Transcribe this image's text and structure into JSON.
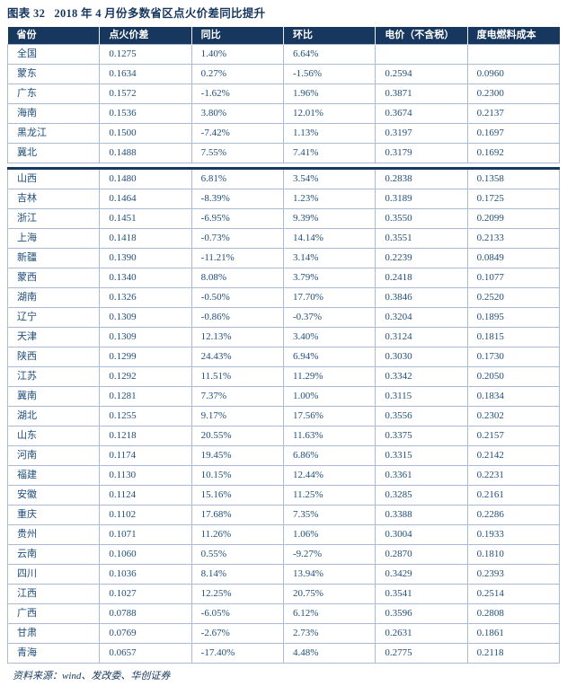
{
  "title": "图表 32   2018 年 4 月份多数省区点火价差同比提升",
  "source": "资料来源：wind、发改委、华创证券",
  "colors": {
    "header_bg": "#17375E",
    "title_text": "#17375E",
    "cell_text": "#1F4E79",
    "grid_border": "#A9BBD6",
    "page_break_rule": "#17375E"
  },
  "table": {
    "columns": [
      "省份",
      "点火价差",
      "同比",
      "环比",
      "电价（不含税）",
      "度电燃料成本"
    ],
    "segments": [
      {
        "rows": [
          [
            "全国",
            "0.1275",
            "1.40%",
            "6.64%",
            "",
            ""
          ],
          [
            "蒙东",
            "0.1634",
            "0.27%",
            "-1.56%",
            "0.2594",
            "0.0960"
          ],
          [
            "广东",
            "0.1572",
            "-1.62%",
            "1.96%",
            "0.3871",
            "0.2300"
          ],
          [
            "海南",
            "0.1536",
            "3.80%",
            "12.01%",
            "0.3674",
            "0.2137"
          ],
          [
            "黑龙江",
            "0.1500",
            "-7.42%",
            "1.13%",
            "0.3197",
            "0.1697"
          ],
          [
            "冀北",
            "0.1488",
            "7.55%",
            "7.41%",
            "0.3179",
            "0.1692"
          ]
        ]
      },
      {
        "rows": [
          [
            "山西",
            "0.1480",
            "6.81%",
            "3.54%",
            "0.2838",
            "0.1358"
          ],
          [
            "吉林",
            "0.1464",
            "-8.39%",
            "1.23%",
            "0.3189",
            "0.1725"
          ],
          [
            "浙江",
            "0.1451",
            "-6.95%",
            "9.39%",
            "0.3550",
            "0.2099"
          ],
          [
            "上海",
            "0.1418",
            "-0.73%",
            "14.14%",
            "0.3551",
            "0.2133"
          ],
          [
            "新疆",
            "0.1390",
            "-11.21%",
            "3.14%",
            "0.2239",
            "0.0849"
          ],
          [
            "蒙西",
            "0.1340",
            "8.08%",
            "3.79%",
            "0.2418",
            "0.1077"
          ],
          [
            "湖南",
            "0.1326",
            "-0.50%",
            "17.70%",
            "0.3846",
            "0.2520"
          ],
          [
            "辽宁",
            "0.1309",
            "-0.86%",
            "-0.37%",
            "0.3204",
            "0.1895"
          ],
          [
            "天津",
            "0.1309",
            "12.13%",
            "3.40%",
            "0.3124",
            "0.1815"
          ],
          [
            "陕西",
            "0.1299",
            "24.43%",
            "6.94%",
            "0.3030",
            "0.1730"
          ],
          [
            "江苏",
            "0.1292",
            "11.51%",
            "11.29%",
            "0.3342",
            "0.2050"
          ],
          [
            "冀南",
            "0.1281",
            "7.37%",
            "1.00%",
            "0.3115",
            "0.1834"
          ],
          [
            "湖北",
            "0.1255",
            "9.17%",
            "17.56%",
            "0.3556",
            "0.2302"
          ],
          [
            "山东",
            "0.1218",
            "20.55%",
            "11.63%",
            "0.3375",
            "0.2157"
          ],
          [
            "河南",
            "0.1174",
            "19.45%",
            "6.86%",
            "0.3315",
            "0.2142"
          ],
          [
            "福建",
            "0.1130",
            "10.15%",
            "12.44%",
            "0.3361",
            "0.2231"
          ],
          [
            "安徽",
            "0.1124",
            "15.16%",
            "11.25%",
            "0.3285",
            "0.2161"
          ],
          [
            "重庆",
            "0.1102",
            "17.68%",
            "7.35%",
            "0.3388",
            "0.2286"
          ],
          [
            "贵州",
            "0.1071",
            "11.26%",
            "1.06%",
            "0.3004",
            "0.1933"
          ],
          [
            "云南",
            "0.1060",
            "0.55%",
            "-9.27%",
            "0.2870",
            "0.1810"
          ],
          [
            "四川",
            "0.1036",
            "8.14%",
            "13.94%",
            "0.3429",
            "0.2393"
          ],
          [
            "江西",
            "0.1027",
            "12.25%",
            "20.75%",
            "0.3541",
            "0.2514"
          ],
          [
            "广西",
            "0.0788",
            "-6.05%",
            "6.12%",
            "0.3596",
            "0.2808"
          ],
          [
            "甘肃",
            "0.0769",
            "-2.67%",
            "2.73%",
            "0.2631",
            "0.1861"
          ],
          [
            "青海",
            "0.0657",
            "-17.40%",
            "4.48%",
            "0.2775",
            "0.2118"
          ]
        ]
      }
    ]
  }
}
